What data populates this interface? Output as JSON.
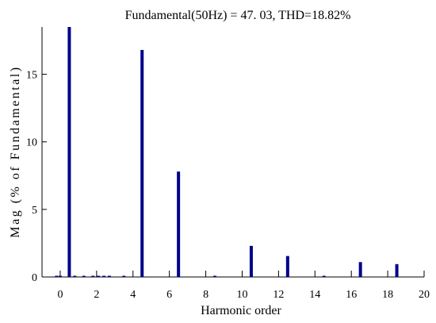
{
  "chart_data": {
    "type": "bar",
    "title": "Fundamental(50Hz) = 47. 03, THD=18.82%",
    "xlabel": "Harmonic order",
    "ylabel": "Mag (% of Fundamental)",
    "xlim": [
      -1,
      20
    ],
    "ylim": [
      0,
      18.5
    ],
    "x_ticks": [
      "0",
      "2",
      "4",
      "6",
      "8",
      "10",
      "12",
      "14",
      "16",
      "18",
      "20"
    ],
    "y_ticks": [
      "0",
      "5",
      "10",
      "15"
    ],
    "bar_color": "#00008b",
    "grid": false,
    "x": [
      -0.2,
      0,
      0.5,
      0.8,
      1.3,
      1.8,
      2.1,
      2.4,
      2.7,
      3.5,
      4.5,
      6.5,
      8.5,
      10.5,
      12.5,
      14.5,
      16.5,
      18.5
    ],
    "values": [
      0.06,
      0.06,
      18.5,
      0.06,
      0.06,
      0.06,
      0.06,
      0.06,
      0.06,
      0.06,
      16.8,
      7.8,
      0.06,
      2.3,
      1.55,
      0.06,
      1.1,
      0.95
    ]
  }
}
